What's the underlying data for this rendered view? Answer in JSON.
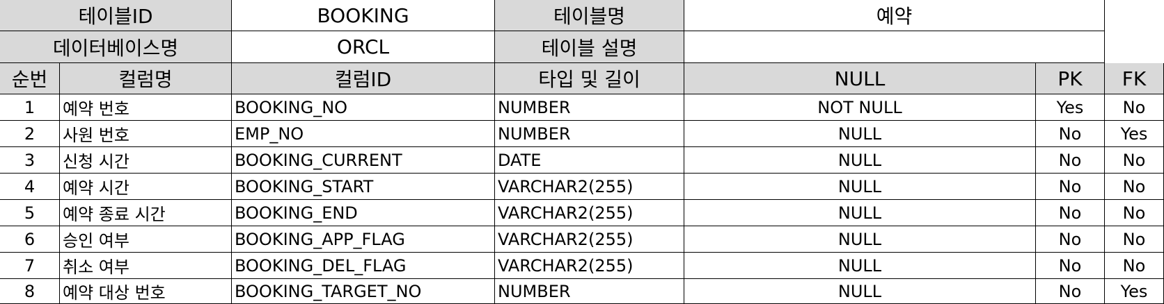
{
  "meta": {
    "table_id_label": "테이블ID",
    "table_id_value": "BOOKING",
    "table_name_label": "테이블명",
    "table_name_value": "예약",
    "db_name_label": "데이터베이스명",
    "db_name_value": "ORCL",
    "table_desc_label": "테이블 설명",
    "table_desc_value": ""
  },
  "columns_header": [
    "순번",
    "컬럼명",
    "컬럼ID",
    "타입 및 길이",
    "NULL",
    "PK",
    "FK"
  ],
  "rows": [
    [
      "1",
      "예약 번호",
      "BOOKING_NO",
      "NUMBER",
      "NOT NULL",
      "Yes",
      "No"
    ],
    [
      "2",
      "사원 번호",
      "EMP_NO",
      "NUMBER",
      "NULL",
      "No",
      "Yes"
    ],
    [
      "3",
      "신청 시간",
      "BOOKING_CURRENT",
      "DATE",
      "NULL",
      "No",
      "No"
    ],
    [
      "4",
      "예약 시간",
      "BOOKING_START",
      "VARCHAR2(255)",
      "NULL",
      "No",
      "No"
    ],
    [
      "5",
      "예약 종료 시간",
      "BOOKING_END",
      "VARCHAR2(255)",
      "NULL",
      "No",
      "No"
    ],
    [
      "6",
      "승인 여부",
      "BOOKING_APP_FLAG",
      "VARCHAR2(255)",
      "NULL",
      "No",
      "No"
    ],
    [
      "7",
      "취소 여부",
      "BOOKING_DEL_FLAG",
      "VARCHAR2(255)",
      "NULL",
      "No",
      "No"
    ],
    [
      "8",
      "예약 대상 번호",
      "BOOKING_TARGET_NO",
      "NUMBER",
      "NULL",
      "No",
      "Yes"
    ]
  ],
  "colors": {
    "header_fill": "#d9d9d9",
    "grid_line": "#000000"
  }
}
